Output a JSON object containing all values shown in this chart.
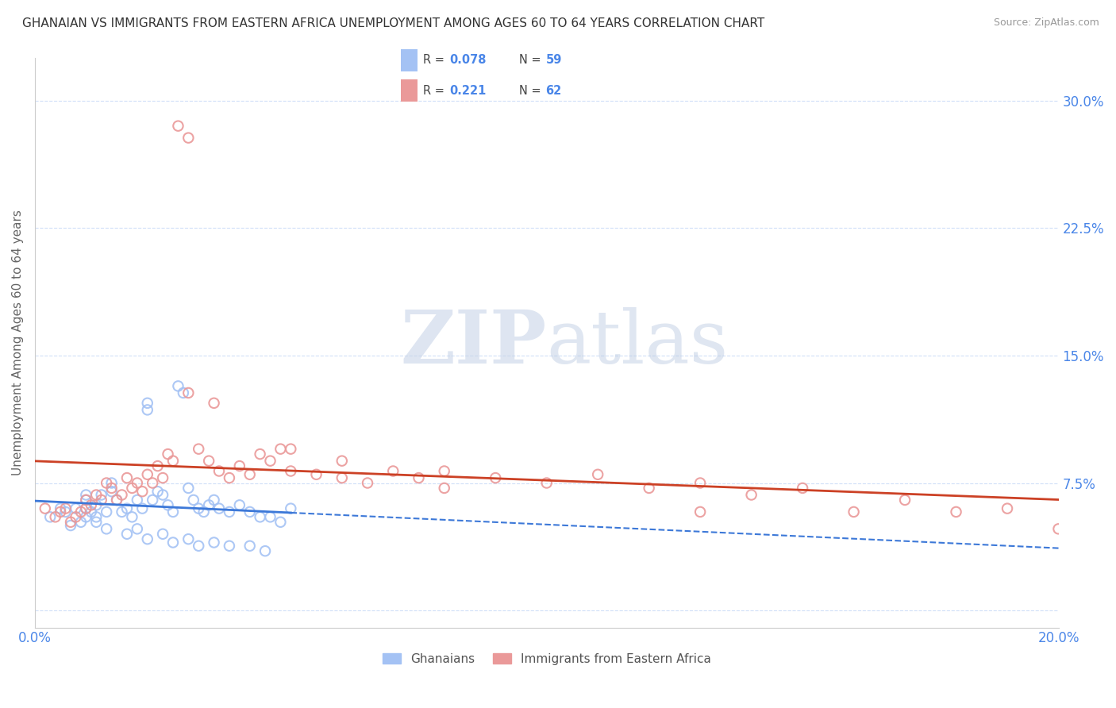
{
  "title": "GHANAIAN VS IMMIGRANTS FROM EASTERN AFRICA UNEMPLOYMENT AMONG AGES 60 TO 64 YEARS CORRELATION CHART",
  "source": "Source: ZipAtlas.com",
  "ylabel": "Unemployment Among Ages 60 to 64 years",
  "xmin": 0.0,
  "xmax": 0.2,
  "ymin": -0.01,
  "ymax": 0.325,
  "yticks": [
    0.0,
    0.075,
    0.15,
    0.225,
    0.3
  ],
  "ytick_labels": [
    "",
    "7.5%",
    "15.0%",
    "22.5%",
    "30.0%"
  ],
  "xticks": [
    0.0,
    0.05,
    0.1,
    0.15,
    0.2
  ],
  "xtick_labels": [
    "0.0%",
    "",
    "",
    "",
    "20.0%"
  ],
  "watermark_zip": "ZIP",
  "watermark_atlas": "atlas",
  "legend_r1": "0.078",
  "legend_n1": "59",
  "legend_r2": "0.221",
  "legend_n2": "62",
  "legend_label1": "Ghanaians",
  "legend_label2": "Immigrants from Eastern Africa",
  "blue_color": "#a4c2f4",
  "pink_color": "#ea9999",
  "blue_line_color": "#3c78d8",
  "pink_line_color": "#cc4125",
  "axis_color": "#4a86e8",
  "grid_color": "#d0dff8",
  "blue_x": [
    0.003,
    0.005,
    0.006,
    0.007,
    0.008,
    0.009,
    0.01,
    0.01,
    0.01,
    0.01,
    0.011,
    0.012,
    0.012,
    0.013,
    0.014,
    0.015,
    0.015,
    0.016,
    0.017,
    0.018,
    0.019,
    0.02,
    0.021,
    0.022,
    0.022,
    0.023,
    0.024,
    0.025,
    0.026,
    0.027,
    0.028,
    0.029,
    0.03,
    0.031,
    0.032,
    0.033,
    0.034,
    0.035,
    0.036,
    0.038,
    0.04,
    0.042,
    0.044,
    0.046,
    0.048,
    0.05,
    0.012,
    0.014,
    0.018,
    0.02,
    0.022,
    0.025,
    0.027,
    0.03,
    0.032,
    0.035,
    0.038,
    0.042,
    0.045
  ],
  "blue_y": [
    0.055,
    0.06,
    0.058,
    0.05,
    0.06,
    0.052,
    0.068,
    0.065,
    0.06,
    0.055,
    0.058,
    0.062,
    0.055,
    0.068,
    0.058,
    0.075,
    0.07,
    0.065,
    0.058,
    0.06,
    0.055,
    0.065,
    0.06,
    0.122,
    0.118,
    0.065,
    0.07,
    0.068,
    0.062,
    0.058,
    0.132,
    0.128,
    0.072,
    0.065,
    0.06,
    0.058,
    0.062,
    0.065,
    0.06,
    0.058,
    0.062,
    0.058,
    0.055,
    0.055,
    0.052,
    0.06,
    0.052,
    0.048,
    0.045,
    0.048,
    0.042,
    0.045,
    0.04,
    0.042,
    0.038,
    0.04,
    0.038,
    0.038,
    0.035
  ],
  "pink_x": [
    0.002,
    0.004,
    0.005,
    0.006,
    0.007,
    0.008,
    0.009,
    0.01,
    0.01,
    0.011,
    0.012,
    0.013,
    0.014,
    0.015,
    0.016,
    0.017,
    0.018,
    0.019,
    0.02,
    0.021,
    0.022,
    0.023,
    0.024,
    0.025,
    0.026,
    0.027,
    0.028,
    0.03,
    0.032,
    0.034,
    0.036,
    0.038,
    0.04,
    0.042,
    0.044,
    0.046,
    0.048,
    0.05,
    0.055,
    0.06,
    0.065,
    0.07,
    0.075,
    0.08,
    0.09,
    0.1,
    0.11,
    0.12,
    0.13,
    0.14,
    0.15,
    0.16,
    0.17,
    0.18,
    0.19,
    0.2,
    0.03,
    0.035,
    0.05,
    0.06,
    0.08,
    0.13
  ],
  "pink_y": [
    0.06,
    0.055,
    0.058,
    0.06,
    0.052,
    0.055,
    0.058,
    0.065,
    0.06,
    0.062,
    0.068,
    0.065,
    0.075,
    0.072,
    0.065,
    0.068,
    0.078,
    0.072,
    0.075,
    0.07,
    0.08,
    0.075,
    0.085,
    0.078,
    0.092,
    0.088,
    0.285,
    0.278,
    0.095,
    0.088,
    0.082,
    0.078,
    0.085,
    0.08,
    0.092,
    0.088,
    0.095,
    0.082,
    0.08,
    0.078,
    0.075,
    0.082,
    0.078,
    0.072,
    0.078,
    0.075,
    0.08,
    0.072,
    0.075,
    0.068,
    0.072,
    0.058,
    0.065,
    0.058,
    0.06,
    0.048,
    0.128,
    0.122,
    0.095,
    0.088,
    0.082,
    0.058
  ]
}
